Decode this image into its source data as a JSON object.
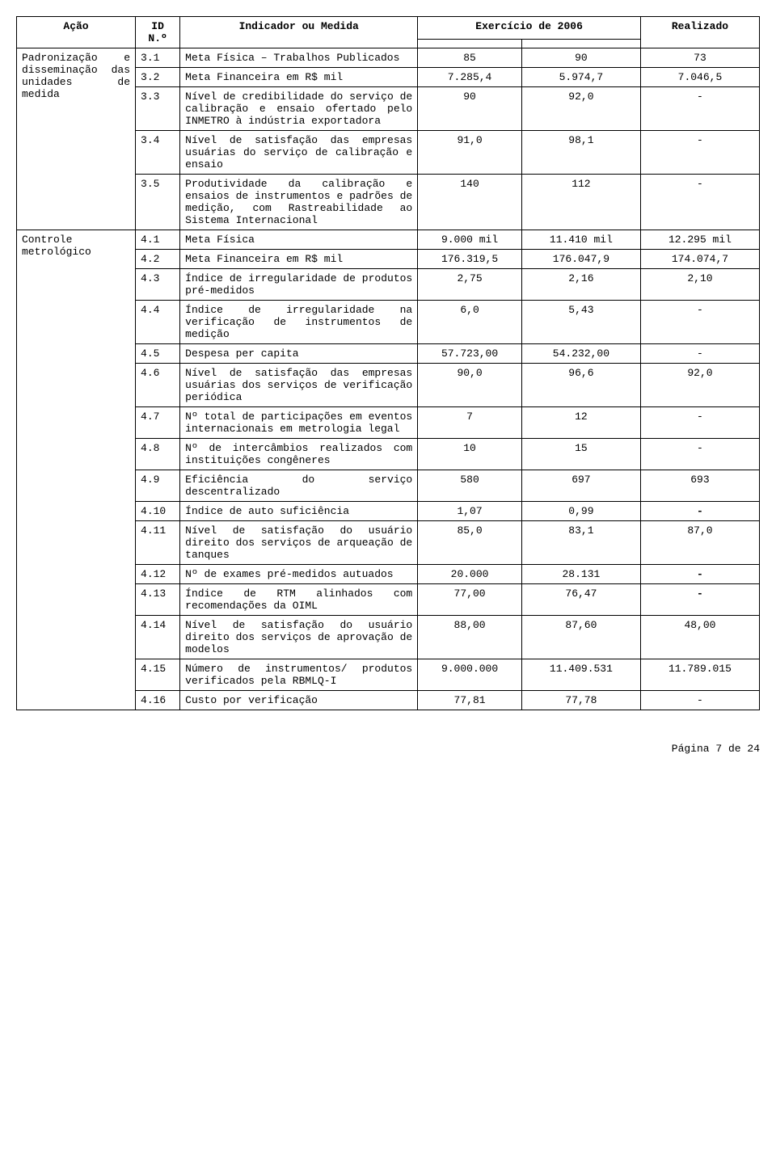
{
  "headers": {
    "acao": "Ação",
    "id": "ID N.º",
    "ind": "Indicador ou Medida",
    "ex": "Exercício de 2006",
    "real": "Realizado"
  },
  "group1": {
    "title": "Padronização e disseminação das unidades de medida"
  },
  "group2": {
    "title": "Controle metrológico"
  },
  "rows": {
    "r31": {
      "id": "3.1",
      "ind": "Meta Física – Trabalhos Publicados",
      "a": "85",
      "b": "90",
      "c": "73"
    },
    "r32": {
      "id": "3.2",
      "ind": "Meta Financeira em R$ mil",
      "a": "7.285,4",
      "b": "5.974,7",
      "c": "7.046,5"
    },
    "r33": {
      "id": "3.3",
      "ind": "Nível de credibilidade do serviço de calibração e ensaio ofertado pelo INMETRO à indústria exportadora",
      "a": "90",
      "b": "92,0",
      "c": "-"
    },
    "r34": {
      "id": "3.4",
      "ind": "Nível de satisfação das empresas usuárias do serviço de calibração e ensaio",
      "a": "91,0",
      "b": "98,1",
      "c": "-"
    },
    "r35": {
      "id": "3.5",
      "ind": "Produtividade da calibração e ensaios de instrumentos e padrões de medição, com Rastreabilidade ao Sistema Internacional",
      "a": "140",
      "b": "112",
      "c": "-"
    },
    "r41": {
      "id": "4.1",
      "ind": "Meta Física",
      "a": "9.000 mil",
      "b": "11.410 mil",
      "c": "12.295 mil"
    },
    "r42": {
      "id": "4.2",
      "ind": "Meta Financeira em R$ mil",
      "a": "176.319,5",
      "b": "176.047,9",
      "c": "174.074,7"
    },
    "r43": {
      "id": "4.3",
      "ind": "Índice de irregularidade de produtos pré-medidos",
      "a": "2,75",
      "b": "2,16",
      "c": "2,10"
    },
    "r44": {
      "id": "4.4",
      "ind": "Índice de irregularidade na verificação de instrumentos de medição",
      "a": "6,0",
      "b": "5,43",
      "c": "-"
    },
    "r45": {
      "id": "4.5",
      "ind": "Despesa per capita",
      "a": "57.723,00",
      "b": "54.232,00",
      "c": "-"
    },
    "r46": {
      "id": "4.6",
      "ind": "Nível de satisfação das empresas usuárias dos serviços de verificação periódica",
      "a": "90,0",
      "b": "96,6",
      "c": "92,0"
    },
    "r47": {
      "id": "4.7",
      "ind": "Nº total de participações em eventos internacionais em metrologia legal",
      "a": "7",
      "b": "12",
      "c": "-"
    },
    "r48": {
      "id": "4.8",
      "ind": "Nº de intercâmbios realizados com instituições congêneres",
      "a": "10",
      "b": "15",
      "c": "-"
    },
    "r49": {
      "id": "4.9",
      "ind": "Eficiência do serviço descentralizado",
      "a": "580",
      "b": "697",
      "c": "693"
    },
    "r410": {
      "id": "4.10",
      "ind": "Índice de auto suficiência",
      "a": "1,07",
      "b": "0,99",
      "c": "-"
    },
    "r411": {
      "id": "4.11",
      "ind": "Nível de satisfação do usuário direito dos serviços de arqueação de tanques",
      "a": "85,0",
      "b": "83,1",
      "c": "87,0"
    },
    "r412": {
      "id": "4.12",
      "ind": "Nº de exames pré-medidos autuados",
      "a": "20.000",
      "b": "28.131",
      "c": "-"
    },
    "r413": {
      "id": "4.13",
      "ind": "Índice de RTM alinhados com recomendações da OIML",
      "a": "77,00",
      "b": "76,47",
      "c": "-"
    },
    "r414": {
      "id": "4.14",
      "ind": "Nível de satisfação do usuário direito dos serviços de aprovação de modelos",
      "a": "88,00",
      "b": "87,60",
      "c": "48,00"
    },
    "r415": {
      "id": "4.15",
      "ind": "Número de instrumentos/ produtos verificados pela RBMLQ-I",
      "a": "9.000.000",
      "b": "11.409.531",
      "c": "11.789.015"
    },
    "r416": {
      "id": "4.16",
      "ind": "Custo por verificação",
      "a": "77,81",
      "b": "77,78",
      "c": "-"
    }
  },
  "footer": "Página 7 de 24"
}
